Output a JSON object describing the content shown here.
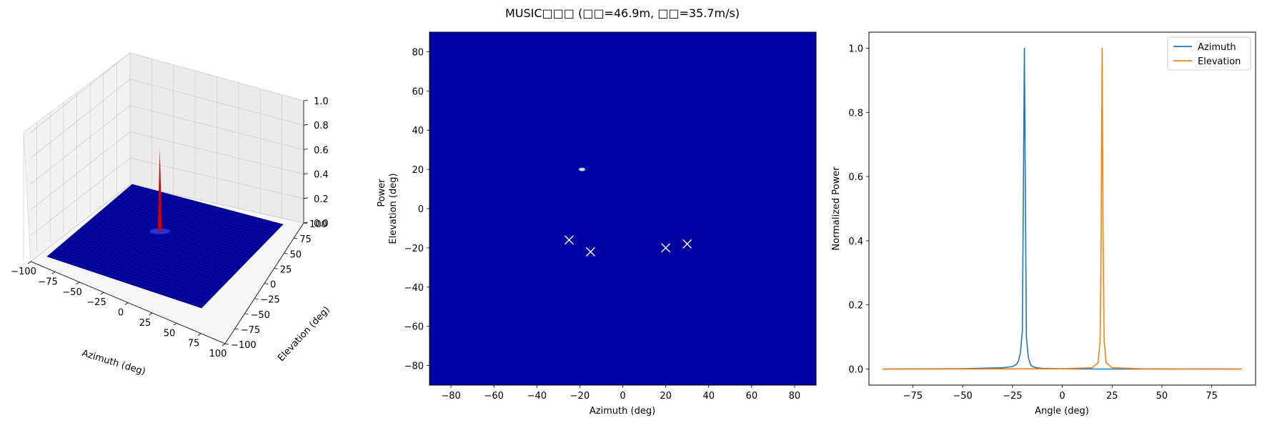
{
  "figure": {
    "title": "MUSIC□□□ (□□=46.9m, □□=35.7m/s)"
  },
  "chart_data": [
    {
      "type": "surface3d",
      "xlabel": "Azimuth (deg)",
      "ylabel": "Elevation (deg)",
      "zlabel": "Power",
      "xlim": [
        -100,
        100
      ],
      "ylim": [
        -100,
        100
      ],
      "zlim": [
        0,
        1.0
      ],
      "xticks": [
        -100,
        -75,
        -50,
        -25,
        0,
        25,
        50,
        75,
        100
      ],
      "yticks": [
        -100,
        -75,
        -50,
        -25,
        0,
        25,
        50,
        75,
        100
      ],
      "zticks": [
        "0.0",
        "0.2",
        "0.4",
        "0.6",
        "0.8",
        "1.0"
      ],
      "peak": {
        "azimuth": -19,
        "elevation": 20,
        "power": 1.0
      },
      "surface_color": "#00009c",
      "peak_color": "#cc0000",
      "grid": true
    },
    {
      "type": "heatmap",
      "xlabel": "Azimuth (deg)",
      "ylabel": "Elevation (deg)",
      "xlim": [
        -90,
        90
      ],
      "ylim": [
        -90,
        90
      ],
      "xticks": [
        -80,
        -60,
        -40,
        -20,
        0,
        20,
        40,
        60,
        80
      ],
      "yticks": [
        -80,
        -60,
        -40,
        -20,
        0,
        20,
        40,
        60,
        80
      ],
      "background_color": "#0000a3",
      "peak": {
        "azimuth": -19,
        "elevation": 20
      },
      "markers": [
        {
          "azimuth": -25,
          "elevation": -16
        },
        {
          "azimuth": -15,
          "elevation": -22
        },
        {
          "azimuth": 20,
          "elevation": -20
        },
        {
          "azimuth": 30,
          "elevation": -18
        }
      ],
      "marker_color": "#ffffff"
    },
    {
      "type": "line",
      "xlabel": "Angle (deg)",
      "ylabel": "Normalized Power",
      "xlim": [
        -97,
        97
      ],
      "ylim": [
        -0.05,
        1.05
      ],
      "xticks": [
        -75,
        -50,
        -25,
        0,
        25,
        50,
        75
      ],
      "yticks": [
        "0.0",
        "0.2",
        "0.4",
        "0.6",
        "0.8",
        "1.0"
      ],
      "legend_position": "top-right",
      "series": [
        {
          "name": "Azimuth",
          "color": "#1f77b4",
          "x": [
            -90,
            -50,
            -30,
            -25,
            -23,
            -22,
            -21,
            -20,
            -19,
            -18,
            -17,
            -16,
            -15,
            -13,
            -10,
            0,
            20,
            50,
            90
          ],
          "y": [
            0.0,
            0.001,
            0.004,
            0.008,
            0.015,
            0.025,
            0.05,
            0.12,
            1.0,
            0.1,
            0.035,
            0.015,
            0.008,
            0.004,
            0.002,
            0.001,
            0.0,
            0.0,
            0.0
          ]
        },
        {
          "name": "Elevation",
          "color": "#ff7f0e",
          "x": [
            -90,
            -50,
            0,
            15,
            18,
            19,
            19.5,
            20,
            20.5,
            21,
            22,
            25,
            40,
            90
          ],
          "y": [
            0.0,
            0.0,
            0.001,
            0.004,
            0.02,
            0.09,
            0.4,
            1.0,
            0.4,
            0.09,
            0.02,
            0.004,
            0.001,
            0.0
          ]
        }
      ]
    }
  ]
}
